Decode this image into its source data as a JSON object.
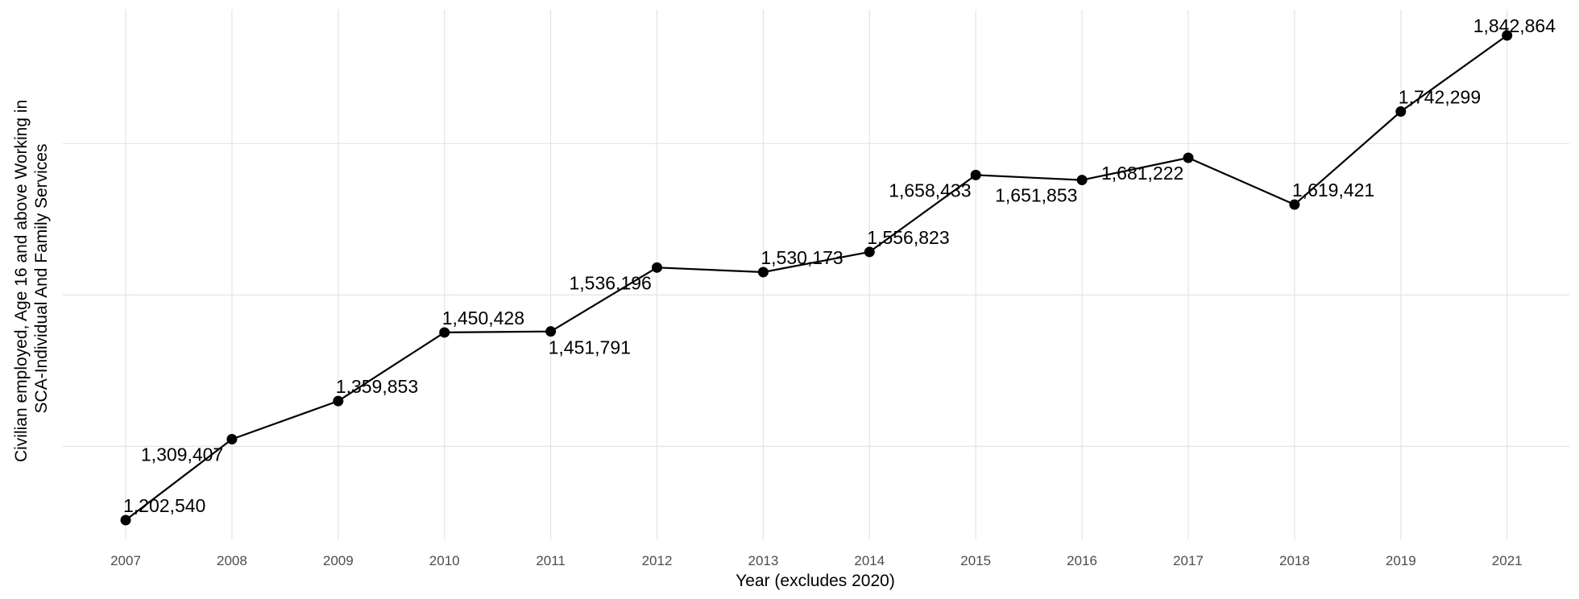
{
  "chart_data": {
    "type": "line",
    "title": "",
    "xlabel": "Year (excludes 2020)",
    "ylabel_lines": [
      "Civilian employed, Age 16 and above Working in",
      "SCA-Individual And Family Services"
    ],
    "categories": [
      "2007",
      "2008",
      "2009",
      "2010",
      "2011",
      "2012",
      "2013",
      "2014",
      "2015",
      "2016",
      "2017",
      "2018",
      "2019",
      "2021"
    ],
    "series": [
      {
        "values": [
          1202540,
          1309407,
          1359853,
          1450428,
          1451791,
          1536196,
          1530173,
          1556823,
          1658433,
          1651853,
          1681222,
          1619421,
          1742299,
          1842864
        ],
        "labels": [
          "1,202,540",
          "1,309,407",
          "1,359,853",
          "1,450,428",
          "1,451,791",
          "1,536,196",
          "1,530,173",
          "1,556,823",
          "1,658,433",
          "1,651,853",
          "1,681,222",
          "1,619,421",
          "1,742,299",
          "1,842,864"
        ]
      }
    ],
    "ylim": [
      1175000,
      1880000
    ],
    "y_gridlines": [
      1300000,
      1500000,
      1700000
    ],
    "grid": true,
    "y_tick_labels_shown": false,
    "colors": {
      "line": "#000000",
      "grid": "#e4e4e4",
      "tick_text": "#4d4d4d"
    }
  }
}
